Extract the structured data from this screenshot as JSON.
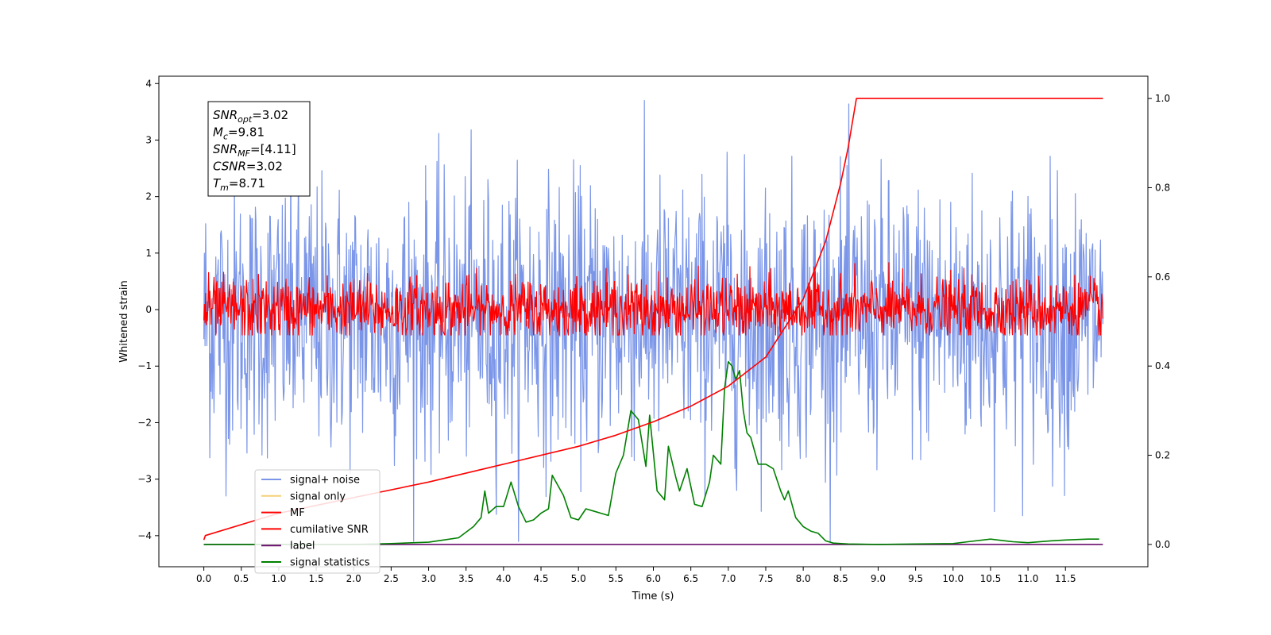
{
  "chart_data": {
    "type": "line",
    "xlabel": "Time (s)",
    "ylabel_left": "Whitened strain",
    "ylabel_right": "",
    "xlim": [
      -0.6,
      12.6
    ],
    "ylim_left": [
      -4.55,
      4.13
    ],
    "ylim_right": [
      -0.05,
      1.05
    ],
    "grid": false,
    "legend_position": "lower-left",
    "x_ticks": [
      "0.0",
      "0.5",
      "1.0",
      "1.5",
      "2.0",
      "2.5",
      "3.0",
      "3.5",
      "4.0",
      "4.5",
      "5.0",
      "5.5",
      "6.0",
      "6.5",
      "7.0",
      "7.5",
      "8.0",
      "8.5",
      "9.0",
      "9.5",
      "10.0",
      "10.5",
      "11.0",
      "11.5"
    ],
    "y_ticks_left": [
      "4",
      "3",
      "2",
      "1",
      "0",
      "−1",
      "−2",
      "−3",
      "−4"
    ],
    "y_ticks_right": [
      "1.0",
      "0.8",
      "0.6",
      "0.4",
      "0.2",
      "0.0"
    ],
    "info_box": [
      {
        "base": "SNR",
        "sub": "opt",
        "value": "=3.02"
      },
      {
        "base": "M",
        "sub": "c",
        "value": "=9.81"
      },
      {
        "base": "SNR",
        "sub": "MF",
        "value": "=[4.11]"
      },
      {
        "base": "CSNR",
        "sub": "",
        "value": "=3.02"
      },
      {
        "base": "T",
        "sub": "m",
        "value": "=8.71"
      }
    ],
    "series": [
      {
        "name": "signal+ noise",
        "color": "#7b96e8",
        "axis": "left",
        "kind": "noise",
        "x_range": [
          0,
          12
        ],
        "center": -0.15,
        "amplitude": 1.2,
        "peak": 3.7,
        "trough": -4.1
      },
      {
        "name": "signal only",
        "color": "#f5d07a",
        "axis": "left",
        "kind": "hidden"
      },
      {
        "name": "MF",
        "color": "#ff0000",
        "axis": "left",
        "kind": "noise",
        "x_range": [
          0,
          12
        ],
        "center": 0.0,
        "amplitude": 0.28,
        "peak": 0.95,
        "trough": -0.45
      },
      {
        "name": "cumilative SNR",
        "color": "#ff0000",
        "axis": "right",
        "x": [
          0,
          0.02,
          1,
          2,
          3,
          4,
          5,
          5.5,
          6,
          6.5,
          7,
          7.5,
          8,
          8.3,
          8.5,
          8.6,
          8.65,
          8.71,
          12
        ],
        "y": [
          0.01,
          0.02,
          0.07,
          0.105,
          0.14,
          0.18,
          0.22,
          0.245,
          0.275,
          0.31,
          0.355,
          0.42,
          0.55,
          0.68,
          0.81,
          0.89,
          0.94,
          1.0,
          1.0
        ]
      },
      {
        "name": "label",
        "color": "#6a0f6a",
        "axis": "right",
        "x": [
          0,
          12
        ],
        "y": [
          0.0,
          0.0
        ]
      },
      {
        "name": "signal statistics",
        "color": "#008000",
        "axis": "right",
        "x": [
          0,
          1,
          2,
          2.5,
          3,
          3.2,
          3.4,
          3.6,
          3.7,
          3.75,
          3.8,
          3.9,
          4.0,
          4.1,
          4.2,
          4.3,
          4.4,
          4.5,
          4.6,
          4.65,
          4.7,
          4.8,
          4.9,
          5.0,
          5.1,
          5.2,
          5.3,
          5.4,
          5.5,
          5.6,
          5.7,
          5.8,
          5.9,
          5.95,
          6.05,
          6.15,
          6.2,
          6.3,
          6.35,
          6.45,
          6.55,
          6.65,
          6.75,
          6.8,
          6.9,
          6.95,
          7.0,
          7.05,
          7.1,
          7.15,
          7.2,
          7.25,
          7.3,
          7.4,
          7.5,
          7.6,
          7.7,
          7.75,
          7.8,
          7.9,
          8.0,
          8.1,
          8.2,
          8.3,
          8.4,
          8.6,
          9.0,
          10.0,
          10.2,
          10.5,
          10.8,
          11.0,
          11.3,
          11.5,
          11.8,
          11.95
        ],
        "y": [
          0.0,
          0.0,
          0.0,
          0.002,
          0.005,
          0.01,
          0.015,
          0.04,
          0.06,
          0.12,
          0.07,
          0.085,
          0.085,
          0.14,
          0.085,
          0.05,
          0.055,
          0.07,
          0.08,
          0.155,
          0.14,
          0.11,
          0.06,
          0.055,
          0.08,
          0.075,
          0.07,
          0.065,
          0.16,
          0.2,
          0.3,
          0.28,
          0.175,
          0.29,
          0.12,
          0.1,
          0.22,
          0.15,
          0.12,
          0.17,
          0.09,
          0.085,
          0.14,
          0.2,
          0.18,
          0.35,
          0.41,
          0.4,
          0.37,
          0.39,
          0.3,
          0.25,
          0.24,
          0.18,
          0.18,
          0.17,
          0.12,
          0.1,
          0.12,
          0.06,
          0.04,
          0.03,
          0.025,
          0.008,
          0.003,
          0.001,
          0.0,
          0.002,
          0.006,
          0.012,
          0.006,
          0.004,
          0.008,
          0.01,
          0.012,
          0.012
        ]
      }
    ]
  }
}
